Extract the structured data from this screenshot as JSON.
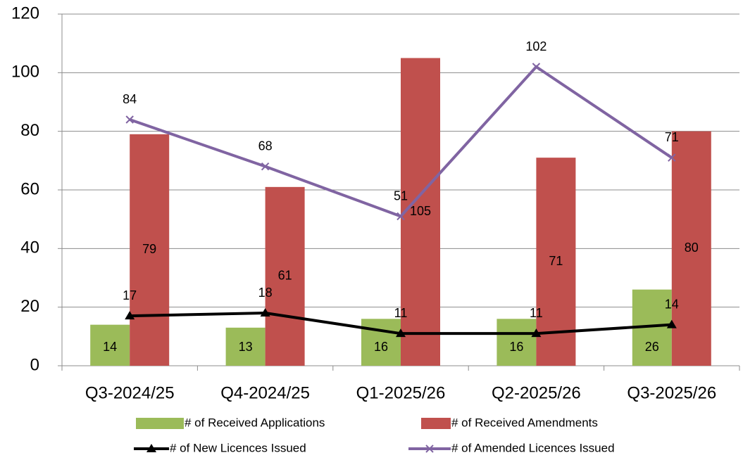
{
  "chart_data": {
    "type": "bar",
    "categories": [
      "Q3-2024/25",
      "Q4-2024/25",
      "Q1-2025/26",
      "Q2-2025/26",
      "Q3-2025/26"
    ],
    "series": [
      {
        "name": "# of Received Applications",
        "type": "bar",
        "color": "#9bbb59",
        "values": [
          14,
          13,
          16,
          16,
          26
        ]
      },
      {
        "name": "# of Received Amendments",
        "type": "bar",
        "color": "#c0504d",
        "values": [
          79,
          61,
          105,
          71,
          80
        ]
      },
      {
        "name": "# of New Licences Issued",
        "type": "line",
        "color": "#000000",
        "marker": "triangle",
        "values": [
          17,
          18,
          11,
          11,
          14
        ]
      },
      {
        "name": "# of Amended Licences Issued",
        "type": "line",
        "color": "#8064a2",
        "marker": "x",
        "values": [
          84,
          68,
          51,
          102,
          71
        ]
      }
    ],
    "ylim": [
      0,
      120
    ],
    "yticks": [
      0,
      20,
      40,
      60,
      80,
      100,
      120
    ],
    "grid": true,
    "legend": "bottom"
  }
}
